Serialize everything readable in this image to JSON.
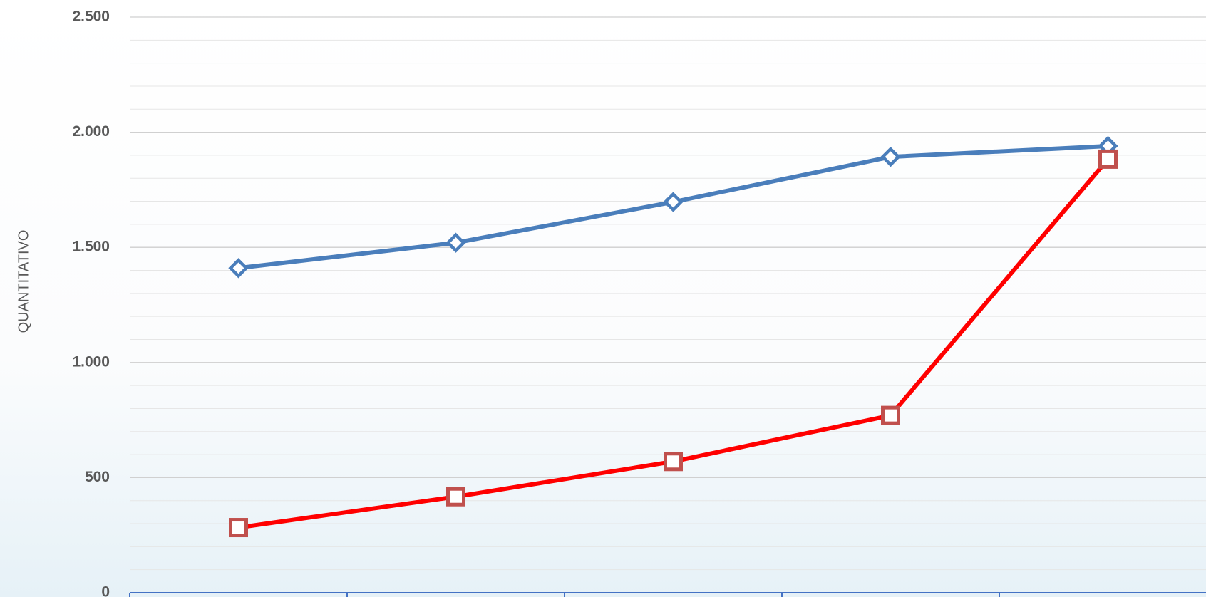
{
  "chart_data": {
    "type": "line",
    "y_label": "QUANTITATIVO",
    "categories": [
      null,
      null,
      null,
      null,
      null
    ],
    "series": [
      {
        "color": "#4a7ebb",
        "marker": "diamond",
        "marker_color": "#4a7ebb",
        "values": [
          1410,
          1520,
          1697,
          1893,
          1940
        ]
      },
      {
        "color": "#ff0000",
        "marker": "square",
        "marker_color": "#c0504d",
        "values": [
          283,
          417,
          570,
          770,
          1883
        ]
      }
    ],
    "ylim": [
      0,
      2500
    ],
    "yticks": [
      0,
      500,
      {
        "value": 1000,
        "label": "1.000"
      },
      {
        "value": 1500,
        "label": "1.500"
      },
      {
        "value": 2000,
        "label": "2.000"
      },
      {
        "value": 2500,
        "label": "2.500"
      }
    ],
    "minor_grid": 100,
    "grid": true
  }
}
